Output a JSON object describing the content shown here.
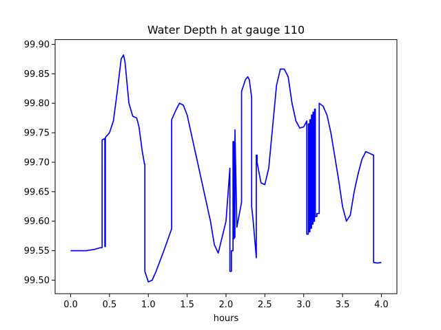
{
  "chart_data": {
    "type": "line",
    "title": "Water Depth h at gauge 110",
    "xlabel": "hours",
    "ylabel": "",
    "xlim": [
      -0.2,
      4.2
    ],
    "ylim": [
      99.477,
      99.908
    ],
    "x_ticks": [
      0.0,
      0.5,
      1.0,
      1.5,
      2.0,
      2.5,
      3.0,
      3.5,
      4.0
    ],
    "x_tick_labels": [
      "0.0",
      "0.5",
      "1.0",
      "1.5",
      "2.0",
      "2.5",
      "3.0",
      "3.5",
      "4.0"
    ],
    "y_ticks": [
      99.5,
      99.55,
      99.6,
      99.65,
      99.7,
      99.75,
      99.8,
      99.85,
      99.9
    ],
    "y_tick_labels": [
      "99.50",
      "99.55",
      "99.60",
      "99.65",
      "99.70",
      "99.75",
      "99.80",
      "99.85",
      "99.90"
    ],
    "grid": false,
    "color": "#0000ff",
    "series": [
      {
        "x": [
          0.0,
          0.1,
          0.2,
          0.3,
          0.38,
          0.405,
          0.405,
          0.44,
          0.44,
          0.447,
          0.447,
          0.5,
          0.55,
          0.6,
          0.65,
          0.68,
          0.7,
          0.75,
          0.8,
          0.85,
          0.88,
          0.92,
          0.95,
          0.955,
          0.955,
          1.0,
          1.05,
          1.1,
          1.2,
          1.3,
          1.3,
          1.35,
          1.4,
          1.45,
          1.5,
          1.6,
          1.7,
          1.8,
          1.85,
          1.9,
          2.0,
          2.05,
          2.05,
          2.07,
          2.07,
          2.09,
          2.09,
          2.1,
          2.1,
          2.115,
          2.115,
          2.14,
          2.2,
          2.2,
          2.25,
          2.28,
          2.3,
          2.33,
          2.33,
          2.35,
          2.39,
          2.39,
          2.4,
          2.4,
          2.45,
          2.5,
          2.55,
          2.6,
          2.65,
          2.7,
          2.75,
          2.8,
          2.85,
          2.9,
          2.95,
          3.0,
          3.02,
          3.04,
          3.04,
          3.06,
          3.06,
          3.07,
          3.07,
          3.08,
          3.08,
          3.09,
          3.09,
          3.1,
          3.1,
          3.11,
          3.11,
          3.12,
          3.12,
          3.13,
          3.13,
          3.14,
          3.14,
          3.15,
          3.15,
          3.17,
          3.17,
          3.2,
          3.2,
          3.25,
          3.3,
          3.35,
          3.4,
          3.45,
          3.5,
          3.55,
          3.6,
          3.65,
          3.7,
          3.75,
          3.8,
          3.85,
          3.9,
          3.9,
          3.95,
          4.0
        ],
        "y": [
          99.55,
          99.55,
          99.55,
          99.552,
          99.555,
          99.555,
          99.738,
          99.74,
          99.557,
          99.557,
          99.742,
          99.75,
          99.77,
          99.82,
          99.875,
          99.882,
          99.87,
          99.8,
          99.778,
          99.775,
          99.76,
          99.72,
          99.697,
          99.697,
          99.515,
          99.497,
          99.5,
          99.515,
          99.55,
          99.587,
          99.772,
          99.787,
          99.8,
          99.797,
          99.78,
          99.72,
          99.66,
          99.6,
          99.56,
          99.546,
          99.6,
          99.69,
          99.515,
          99.515,
          99.55,
          99.55,
          99.735,
          99.735,
          99.57,
          99.573,
          99.755,
          99.59,
          99.632,
          99.82,
          99.84,
          99.845,
          99.84,
          99.81,
          99.625,
          99.6,
          99.538,
          99.712,
          99.712,
          99.7,
          99.665,
          99.662,
          99.69,
          99.76,
          99.83,
          99.858,
          99.858,
          99.845,
          99.8,
          99.77,
          99.758,
          99.76,
          99.765,
          99.77,
          99.578,
          99.578,
          99.765,
          99.765,
          99.582,
          99.582,
          99.772,
          99.772,
          99.588,
          99.588,
          99.78,
          99.78,
          99.595,
          99.595,
          99.785,
          99.785,
          99.6,
          99.6,
          99.79,
          99.79,
          99.608,
          99.608,
          99.613,
          99.613,
          99.8,
          99.795,
          99.78,
          99.75,
          99.71,
          99.67,
          99.625,
          99.6,
          99.61,
          99.65,
          99.68,
          99.705,
          99.718,
          99.715,
          99.712,
          99.53,
          99.529,
          99.53
        ]
      }
    ]
  }
}
